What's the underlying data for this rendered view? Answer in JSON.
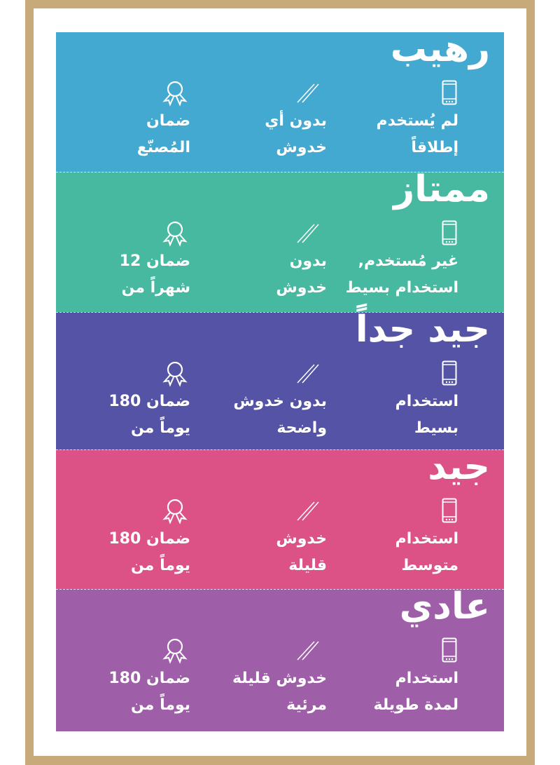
{
  "colors": {
    "frame": "#c8a97a",
    "sections": [
      "#44a9d0",
      "#47b9a1",
      "#5553a5",
      "#dc5186",
      "#9e5fa8"
    ]
  },
  "icons": {
    "usage": "smartphone-icon",
    "condition": "scratch-lines-icon",
    "warranty": "award-ribbon-icon"
  },
  "sections": [
    {
      "title": "رهيب",
      "usage": [
        "لم يُستخدم",
        "إطلاقاً"
      ],
      "condition": [
        "بدون أي",
        "خدوش"
      ],
      "warranty": [
        "ضمان",
        "المُصنّع"
      ]
    },
    {
      "title": "ممتاز",
      "usage": [
        "غير مُستخدم,",
        "استخدام بسيط"
      ],
      "condition": [
        "بدون",
        "خدوش"
      ],
      "warranty": [
        "ضمان 12",
        "شهراً من"
      ]
    },
    {
      "title": "جيد جداً",
      "usage": [
        "استخدام",
        "بسيط"
      ],
      "condition": [
        "بدون خدوش",
        "واضحة"
      ],
      "warranty": [
        "ضمان 180",
        "يوماً من"
      ]
    },
    {
      "title": "جيد",
      "usage": [
        "استخدام",
        "متوسط"
      ],
      "condition": [
        "خدوش",
        "قليلة"
      ],
      "warranty": [
        "ضمان 180",
        "يوماً من"
      ]
    },
    {
      "title": "عادي",
      "usage": [
        "استخدام",
        "لمدة طويلة"
      ],
      "condition": [
        "خدوش قليلة",
        "مرئية"
      ],
      "warranty": [
        "ضمان 180",
        "يوماً من"
      ]
    }
  ]
}
